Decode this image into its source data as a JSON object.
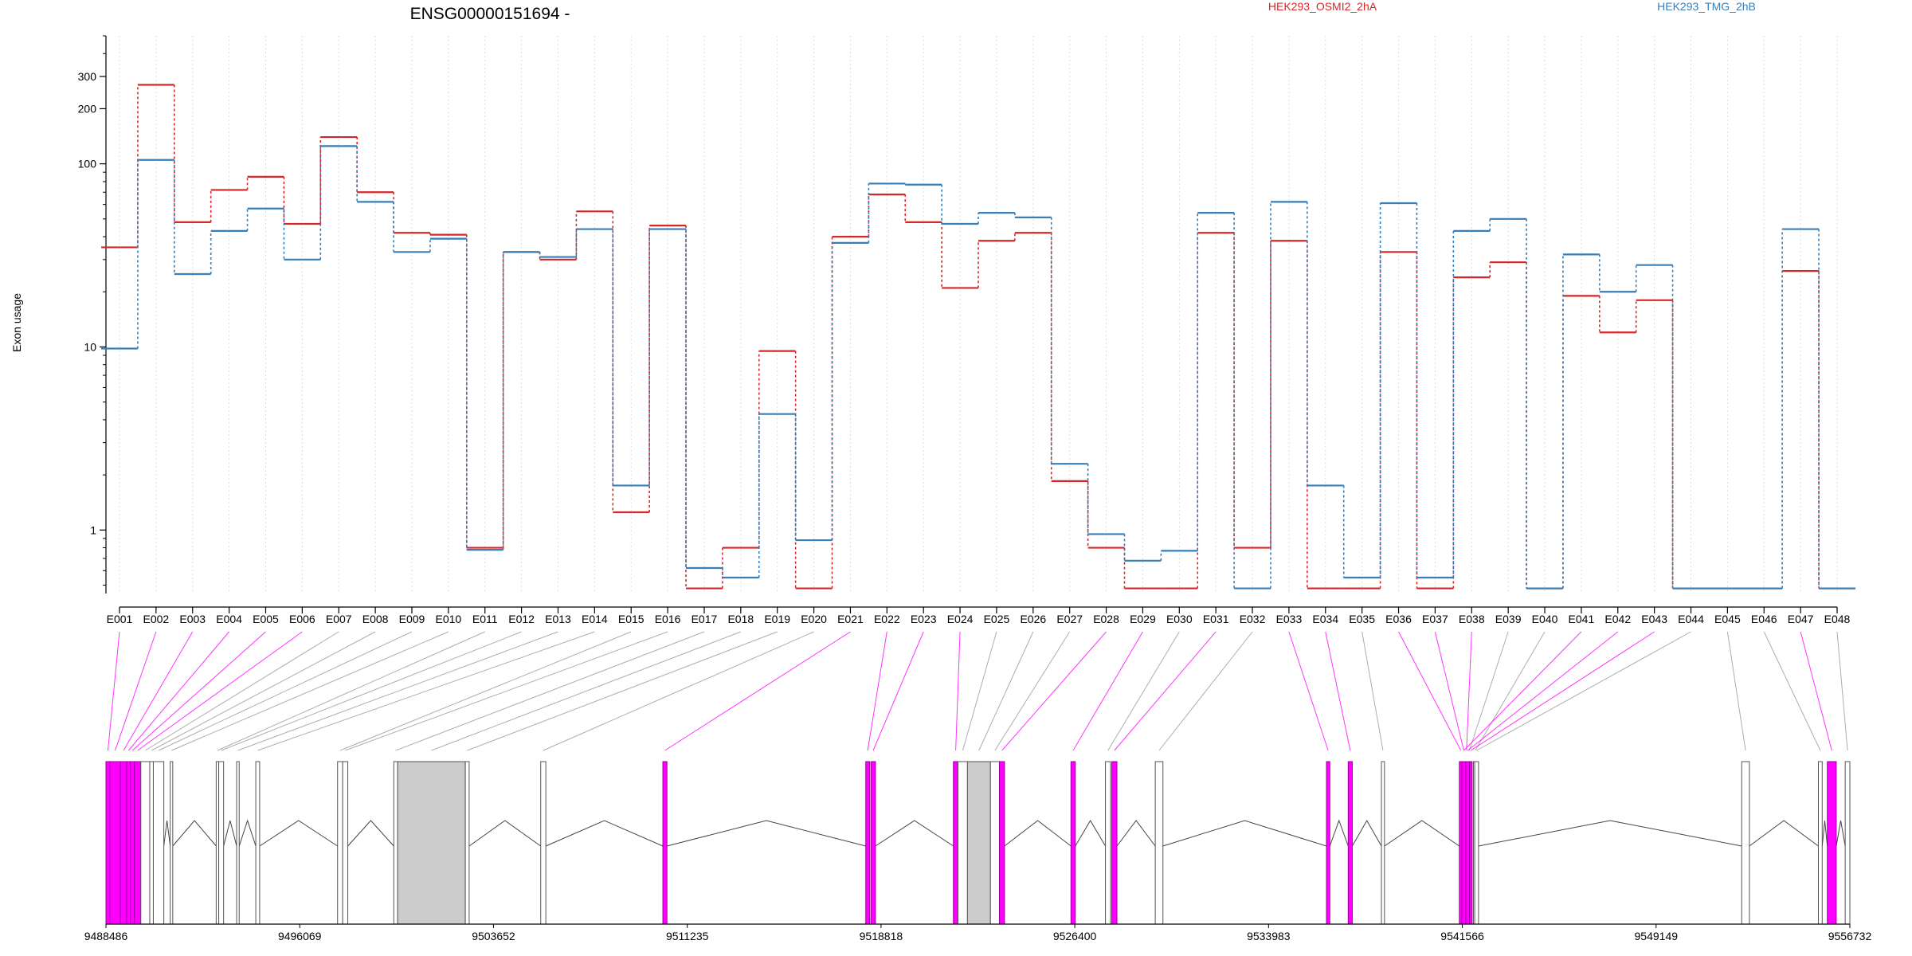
{
  "chart_data": {
    "type": "line",
    "title": "ENSG00000151694 -",
    "ylabel": "Exon usage",
    "xlabel": "",
    "yscale": "log",
    "ylim": [
      0.45,
      500
    ],
    "yticks": [
      1,
      10,
      100,
      200,
      300
    ],
    "ytick_labels": [
      "1",
      "10",
      "100",
      "200",
      "300"
    ],
    "highlight_color": "#ff00ff",
    "categories": [
      "E001",
      "E002",
      "E003",
      "E004",
      "E005",
      "E006",
      "E007",
      "E008",
      "E009",
      "E010",
      "E011",
      "E012",
      "E013",
      "E014",
      "E015",
      "E016",
      "E017",
      "E018",
      "E019",
      "E020",
      "E021",
      "E022",
      "E023",
      "E024",
      "E025",
      "E026",
      "E027",
      "E028",
      "E029",
      "E030",
      "E031",
      "E032",
      "E033",
      "E034",
      "E035",
      "E036",
      "E037",
      "E038",
      "E039",
      "E040",
      "E041",
      "E042",
      "E043",
      "E044",
      "E045",
      "E046",
      "E047",
      "E048"
    ],
    "series": [
      {
        "name": "HEK293_OSMI2_2hA",
        "color": "#d62728",
        "values": [
          35,
          270,
          48,
          72,
          85,
          47,
          140,
          70,
          42,
          41,
          0.8,
          33,
          30,
          55,
          1.25,
          46,
          0.48,
          0.8,
          9.5,
          0.48,
          40,
          68,
          48,
          21,
          38,
          42,
          1.85,
          0.8,
          0.48,
          0.48,
          42,
          0.8,
          38,
          0.48,
          0.48,
          33,
          0.48,
          24,
          29,
          0.48,
          19,
          12,
          18,
          0.48,
          0.48,
          0.48,
          26,
          0.48
        ]
      },
      {
        "name": "HEK293_TMG_2hB",
        "color": "#377eb8",
        "values": [
          9.8,
          105,
          25,
          43,
          57,
          30,
          125,
          62,
          33,
          39,
          0.78,
          33,
          31,
          44,
          1.75,
          44,
          0.62,
          0.55,
          4.3,
          0.88,
          37,
          78,
          77,
          47,
          54,
          51,
          2.3,
          0.95,
          0.68,
          0.77,
          54,
          0.48,
          62,
          1.75,
          0.55,
          61,
          0.55,
          43,
          50,
          0.48,
          32,
          20,
          28,
          0.48,
          0.48,
          0.48,
          44,
          0.48
        ]
      }
    ],
    "coord_axis": {
      "range": [
        9488486,
        9556732
      ],
      "ticks": [
        9488486,
        9496069,
        9503652,
        9511235,
        9518818,
        9526400,
        9533983,
        9541566,
        9549149,
        9556732
      ],
      "tick_labels": [
        "9488486",
        "9496069",
        "9503652",
        "9511235",
        "9518818",
        "9526400",
        "9533983",
        "9541566",
        "9549149",
        "9556732"
      ]
    },
    "exons": [
      {
        "id": "E001",
        "start": 9488486,
        "end": 9488640,
        "highlighted": true
      },
      {
        "id": "E002",
        "start": 9488640,
        "end": 9489050,
        "highlighted": true
      },
      {
        "id": "E003",
        "start": 9489050,
        "end": 9489300,
        "highlighted": true
      },
      {
        "id": "E004",
        "start": 9489300,
        "end": 9489440,
        "highlighted": true
      },
      {
        "id": "E005",
        "start": 9489440,
        "end": 9489600,
        "highlighted": true
      },
      {
        "id": "E006",
        "start": 9489600,
        "end": 9489850,
        "highlighted": true
      },
      {
        "id": "E007",
        "start": 9489850,
        "end": 9490200,
        "highlighted": false
      },
      {
        "id": "E008",
        "start": 9490200,
        "end": 9490340,
        "highlighted": false
      },
      {
        "id": "E009",
        "start": 9490340,
        "end": 9490750,
        "highlighted": false
      },
      {
        "id": "E010",
        "start": 9491000,
        "end": 9491100,
        "highlighted": false
      },
      {
        "id": "E011",
        "start": 9492800,
        "end": 9492900,
        "highlighted": false
      },
      {
        "id": "E012",
        "start": 9492900,
        "end": 9493090,
        "highlighted": false
      },
      {
        "id": "E013",
        "start": 9493600,
        "end": 9493700,
        "highlighted": false
      },
      {
        "id": "E014",
        "start": 9494350,
        "end": 9494500,
        "highlighted": false
      },
      {
        "id": "E015",
        "start": 9497550,
        "end": 9497750,
        "highlighted": false
      },
      {
        "id": "E016",
        "start": 9497750,
        "end": 9497950,
        "highlighted": false
      },
      {
        "id": "E017",
        "start": 9499750,
        "end": 9499900,
        "highlighted": false
      },
      {
        "id": "E018",
        "start": 9499900,
        "end": 9502550,
        "highlighted": false
      },
      {
        "id": "E019",
        "start": 9502550,
        "end": 9502700,
        "highlighted": false
      },
      {
        "id": "E020",
        "start": 9505500,
        "end": 9505700,
        "highlighted": false
      },
      {
        "id": "E021",
        "start": 9510280,
        "end": 9510440,
        "highlighted": true
      },
      {
        "id": "E022",
        "start": 9518220,
        "end": 9518370,
        "highlighted": true
      },
      {
        "id": "E023",
        "start": 9518420,
        "end": 9518600,
        "highlighted": true
      },
      {
        "id": "E024",
        "start": 9521650,
        "end": 9521830,
        "highlighted": true
      },
      {
        "id": "E025",
        "start": 9521830,
        "end": 9522200,
        "highlighted": false
      },
      {
        "id": "E026",
        "start": 9522200,
        "end": 9523100,
        "highlighted": false
      },
      {
        "id": "E027",
        "start": 9523100,
        "end": 9523450,
        "highlighted": false
      },
      {
        "id": "E028",
        "start": 9523450,
        "end": 9523650,
        "highlighted": true
      },
      {
        "id": "E029",
        "start": 9526250,
        "end": 9526420,
        "highlighted": true
      },
      {
        "id": "E030",
        "start": 9527600,
        "end": 9527800,
        "highlighted": false
      },
      {
        "id": "E031",
        "start": 9527850,
        "end": 9528050,
        "highlighted": true
      },
      {
        "id": "E032",
        "start": 9529550,
        "end": 9529850,
        "highlighted": false
      },
      {
        "id": "E033",
        "start": 9536250,
        "end": 9536380,
        "highlighted": true
      },
      {
        "id": "E034",
        "start": 9537100,
        "end": 9537260,
        "highlighted": true
      },
      {
        "id": "E035",
        "start": 9538400,
        "end": 9538520,
        "highlighted": false
      },
      {
        "id": "E036",
        "start": 9541450,
        "end": 9541570,
        "highlighted": true
      },
      {
        "id": "E037",
        "start": 9541570,
        "end": 9541680,
        "highlighted": true
      },
      {
        "id": "E038",
        "start": 9541680,
        "end": 9541780,
        "highlighted": true
      },
      {
        "id": "E039",
        "start": 9541780,
        "end": 9541900,
        "highlighted": false
      },
      {
        "id": "E040",
        "start": 9542000,
        "end": 9542150,
        "highlighted": false
      },
      {
        "id": "E041",
        "start": 9541550,
        "end": 9541700,
        "highlighted": true
      },
      {
        "id": "E042",
        "start": 9541700,
        "end": 9541850,
        "highlighted": true
      },
      {
        "id": "E043",
        "start": 9541850,
        "end": 9541950,
        "highlighted": true
      },
      {
        "id": "E044",
        "start": 9542050,
        "end": 9542200,
        "highlighted": false
      },
      {
        "id": "E045",
        "start": 9552500,
        "end": 9552800,
        "highlighted": false
      },
      {
        "id": "E046",
        "start": 9555500,
        "end": 9555650,
        "highlighted": false
      },
      {
        "id": "E047",
        "start": 9555850,
        "end": 9556200,
        "highlighted": true
      },
      {
        "id": "E048",
        "start": 9556550,
        "end": 9556732,
        "highlighted": false
      }
    ]
  }
}
